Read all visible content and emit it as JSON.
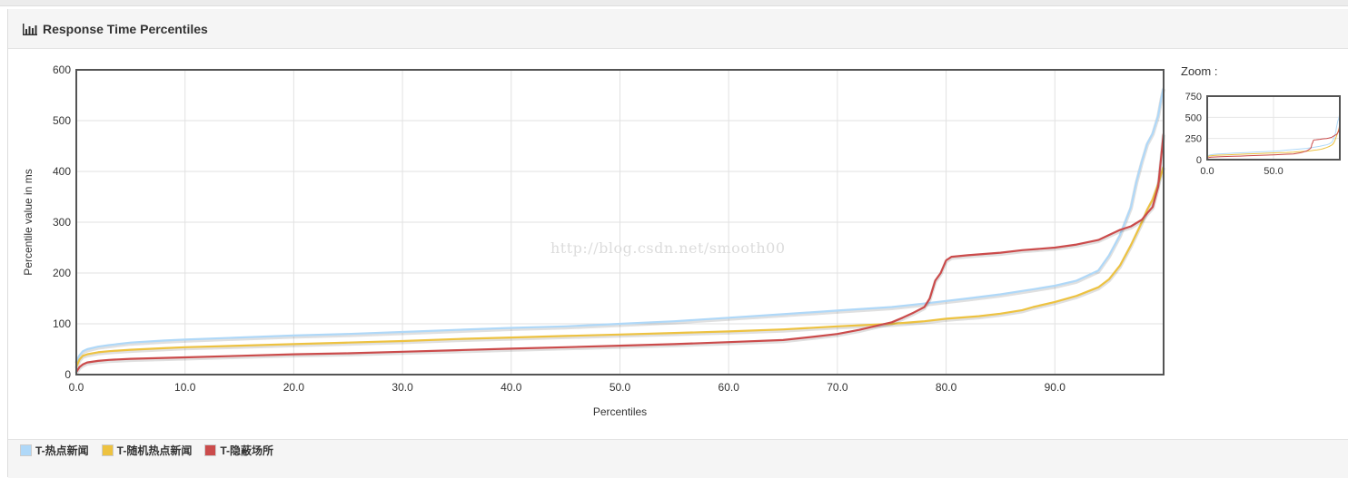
{
  "panel": {
    "title": "Response Time Percentiles"
  },
  "watermark": "http://blog.csdn.net/smooth00",
  "zoom": {
    "label": "Zoom :"
  },
  "chart_data": {
    "type": "line",
    "title": "",
    "xlabel": "Percentiles",
    "ylabel": "Percentile value in ms",
    "xlim": [
      0,
      100
    ],
    "ylim": [
      0,
      600
    ],
    "xticks": [
      "0.0",
      "10.0",
      "20.0",
      "30.0",
      "40.0",
      "50.0",
      "60.0",
      "70.0",
      "80.0",
      "90.0"
    ],
    "yticks": [
      "0",
      "100",
      "200",
      "300",
      "400",
      "500",
      "600"
    ],
    "grid": true,
    "legend_position": "bottom",
    "series": [
      {
        "name": "T-热点新闻",
        "color": "#afd8f8",
        "points": [
          [
            0,
            25
          ],
          [
            0.3,
            38
          ],
          [
            0.6,
            46
          ],
          [
            1,
            50
          ],
          [
            2,
            55
          ],
          [
            3,
            58
          ],
          [
            5,
            63
          ],
          [
            8,
            67
          ],
          [
            10,
            69
          ],
          [
            15,
            73
          ],
          [
            20,
            77
          ],
          [
            25,
            80
          ],
          [
            30,
            84
          ],
          [
            35,
            88
          ],
          [
            40,
            92
          ],
          [
            45,
            95
          ],
          [
            50,
            100
          ],
          [
            55,
            105
          ],
          [
            60,
            112
          ],
          [
            65,
            119
          ],
          [
            70,
            126
          ],
          [
            75,
            133
          ],
          [
            78,
            140
          ],
          [
            80,
            145
          ],
          [
            82,
            150
          ],
          [
            85,
            158
          ],
          [
            88,
            168
          ],
          [
            90,
            175
          ],
          [
            92,
            185
          ],
          [
            94,
            205
          ],
          [
            95,
            235
          ],
          [
            96,
            275
          ],
          [
            97,
            330
          ],
          [
            97.5,
            380
          ],
          [
            98,
            420
          ],
          [
            98.5,
            455
          ],
          [
            99,
            475
          ],
          [
            99.5,
            510
          ],
          [
            99.8,
            545
          ],
          [
            100,
            565
          ]
        ]
      },
      {
        "name": "T-随机热点新闻",
        "color": "#edc240",
        "points": [
          [
            0,
            15
          ],
          [
            0.3,
            30
          ],
          [
            0.6,
            37
          ],
          [
            1,
            40
          ],
          [
            2,
            44
          ],
          [
            3,
            46
          ],
          [
            5,
            49
          ],
          [
            8,
            52
          ],
          [
            10,
            54
          ],
          [
            15,
            57
          ],
          [
            20,
            60
          ],
          [
            25,
            63
          ],
          [
            30,
            66
          ],
          [
            35,
            70
          ],
          [
            40,
            73
          ],
          [
            45,
            76
          ],
          [
            50,
            79
          ],
          [
            55,
            82
          ],
          [
            60,
            85
          ],
          [
            65,
            89
          ],
          [
            70,
            95
          ],
          [
            75,
            100
          ],
          [
            78,
            105
          ],
          [
            80,
            110
          ],
          [
            83,
            115
          ],
          [
            85,
            120
          ],
          [
            87,
            127
          ],
          [
            88,
            133
          ],
          [
            90,
            143
          ],
          [
            92,
            155
          ],
          [
            94,
            172
          ],
          [
            95,
            188
          ],
          [
            96,
            215
          ],
          [
            97,
            255
          ],
          [
            98,
            300
          ],
          [
            98.5,
            325
          ],
          [
            99,
            345
          ],
          [
            99.5,
            375
          ],
          [
            100,
            410
          ]
        ]
      },
      {
        "name": "T-隐蔽场所",
        "color": "#cb4b4b",
        "points": [
          [
            0,
            5
          ],
          [
            0.3,
            15
          ],
          [
            0.6,
            20
          ],
          [
            1,
            24
          ],
          [
            2,
            27
          ],
          [
            3,
            29
          ],
          [
            5,
            31
          ],
          [
            10,
            34
          ],
          [
            15,
            37
          ],
          [
            20,
            40
          ],
          [
            25,
            42
          ],
          [
            30,
            45
          ],
          [
            35,
            48
          ],
          [
            40,
            51
          ],
          [
            45,
            54
          ],
          [
            50,
            57
          ],
          [
            55,
            60
          ],
          [
            60,
            64
          ],
          [
            65,
            68
          ],
          [
            68,
            75
          ],
          [
            70,
            80
          ],
          [
            72,
            88
          ],
          [
            74,
            98
          ],
          [
            75,
            103
          ],
          [
            76,
            112
          ],
          [
            77,
            122
          ],
          [
            78,
            133
          ],
          [
            78.5,
            150
          ],
          [
            79,
            185
          ],
          [
            79.5,
            200
          ],
          [
            80,
            225
          ],
          [
            80.5,
            232
          ],
          [
            82,
            235
          ],
          [
            85,
            240
          ],
          [
            87,
            245
          ],
          [
            90,
            250
          ],
          [
            92,
            256
          ],
          [
            94,
            265
          ],
          [
            95,
            275
          ],
          [
            96,
            285
          ],
          [
            97,
            292
          ],
          [
            98,
            305
          ],
          [
            98.5,
            318
          ],
          [
            99,
            330
          ],
          [
            99.5,
            370
          ],
          [
            100,
            475
          ]
        ]
      }
    ],
    "zoom": {
      "xticks": [
        "0.0",
        "50.0"
      ],
      "yticks": [
        "0",
        "250",
        "500",
        "750"
      ],
      "xlim": [
        0,
        100
      ],
      "ylim": [
        0,
        750
      ]
    }
  }
}
